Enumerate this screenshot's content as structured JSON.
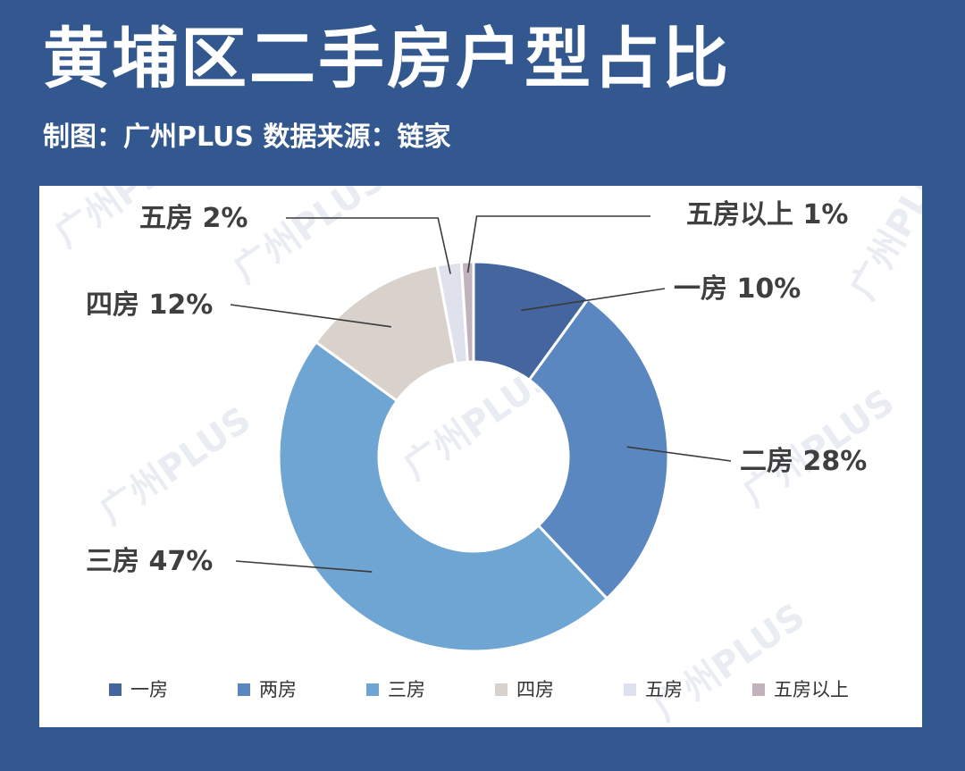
{
  "header": {
    "title": "黄埔区二手房户型占比",
    "subtitle": "制图：广州PLUS   数据来源：链家"
  },
  "watermark": "广州PLUS",
  "colors": {
    "background": "#33578f",
    "card": "#ffffff"
  },
  "chart_data": {
    "type": "pie",
    "style": "donut",
    "categories": [
      "一房",
      "两房",
      "三房",
      "四房",
      "五房",
      "五房以上"
    ],
    "values": [
      10,
      28,
      47,
      12,
      2,
      1
    ],
    "unit": "%",
    "colors": [
      "#44659d",
      "#5b87c1",
      "#6ea5d2",
      "#d9d2cc",
      "#dfe2ec",
      "#c0b3bd"
    ],
    "data_labels": [
      "一房 10%",
      "二房 28%",
      "三房 47%",
      "四房 12%",
      "五房 2%",
      "五房以上 1%"
    ],
    "legend": {
      "position": "bottom",
      "entries": [
        "一房",
        "两房",
        "三房",
        "四房",
        "五房",
        "五房以上"
      ]
    }
  }
}
